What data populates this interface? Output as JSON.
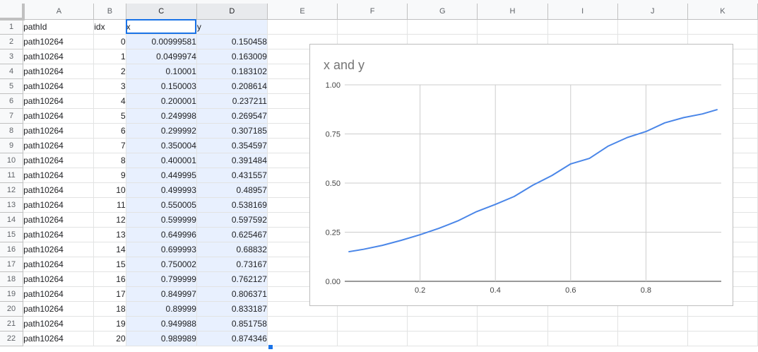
{
  "columns": [
    "A",
    "B",
    "C",
    "D",
    "E",
    "F",
    "G",
    "H",
    "I",
    "J",
    "K"
  ],
  "column_widths": null,
  "headers": {
    "A": "pathId",
    "B": "idx",
    "C": "x",
    "D": "y"
  },
  "rows": [
    {
      "n": "2",
      "pathId": "path10264",
      "idx": "0",
      "x": "0.00999581",
      "y": "0.150458"
    },
    {
      "n": "3",
      "pathId": "path10264",
      "idx": "1",
      "x": "0.0499974",
      "y": "0.163009"
    },
    {
      "n": "4",
      "pathId": "path10264",
      "idx": "2",
      "x": "0.10001",
      "y": "0.183102"
    },
    {
      "n": "5",
      "pathId": "path10264",
      "idx": "3",
      "x": "0.150003",
      "y": "0.208614"
    },
    {
      "n": "6",
      "pathId": "path10264",
      "idx": "4",
      "x": "0.200001",
      "y": "0.237211"
    },
    {
      "n": "7",
      "pathId": "path10264",
      "idx": "5",
      "x": "0.249998",
      "y": "0.269547"
    },
    {
      "n": "8",
      "pathId": "path10264",
      "idx": "6",
      "x": "0.299992",
      "y": "0.307185"
    },
    {
      "n": "9",
      "pathId": "path10264",
      "idx": "7",
      "x": "0.350004",
      "y": "0.354597"
    },
    {
      "n": "10",
      "pathId": "path10264",
      "idx": "8",
      "x": "0.400001",
      "y": "0.391484"
    },
    {
      "n": "11",
      "pathId": "path10264",
      "idx": "9",
      "x": "0.449995",
      "y": "0.431557"
    },
    {
      "n": "12",
      "pathId": "path10264",
      "idx": "10",
      "x": "0.499993",
      "y": "0.48957"
    },
    {
      "n": "13",
      "pathId": "path10264",
      "idx": "11",
      "x": "0.550005",
      "y": "0.538169"
    },
    {
      "n": "14",
      "pathId": "path10264",
      "idx": "12",
      "x": "0.599999",
      "y": "0.597592"
    },
    {
      "n": "15",
      "pathId": "path10264",
      "idx": "13",
      "x": "0.649996",
      "y": "0.625467"
    },
    {
      "n": "16",
      "pathId": "path10264",
      "idx": "14",
      "x": "0.699993",
      "y": "0.68832"
    },
    {
      "n": "17",
      "pathId": "path10264",
      "idx": "15",
      "x": "0.750002",
      "y": "0.73167"
    },
    {
      "n": "18",
      "pathId": "path10264",
      "idx": "16",
      "x": "0.799999",
      "y": "0.762127"
    },
    {
      "n": "19",
      "pathId": "path10264",
      "idx": "17",
      "x": "0.849997",
      "y": "0.806371"
    },
    {
      "n": "20",
      "pathId": "path10264",
      "idx": "18",
      "x": "0.89999",
      "y": "0.833187"
    },
    {
      "n": "21",
      "pathId": "path10264",
      "idx": "19",
      "x": "0.949988",
      "y": "0.851758"
    },
    {
      "n": "22",
      "pathId": "path10264",
      "idx": "20",
      "x": "0.989989",
      "y": "0.874346"
    }
  ],
  "selection_color": "#e8f0fe",
  "accent_color": "#1a73e8",
  "chart_data": {
    "type": "line",
    "title": "x and y",
    "xlabel": "",
    "ylabel": "",
    "xlim": [
      0,
      1
    ],
    "ylim": [
      0,
      1
    ],
    "xticks": [
      "0.2",
      "0.4",
      "0.6",
      "0.8"
    ],
    "yticks": [
      "0.00",
      "0.25",
      "0.50",
      "0.75",
      "1.00"
    ],
    "grid": true,
    "line_color": "#4a86e8",
    "series": [
      {
        "x": [
          0.00999581,
          0.0499974,
          0.10001,
          0.150003,
          0.200001,
          0.249998,
          0.299992,
          0.350004,
          0.400001,
          0.449995,
          0.499993,
          0.550005,
          0.599999,
          0.649996,
          0.699993,
          0.750002,
          0.799999,
          0.849997,
          0.89999,
          0.949988,
          0.989989
        ],
        "values": [
          0.150458,
          0.163009,
          0.183102,
          0.208614,
          0.237211,
          0.269547,
          0.307185,
          0.354597,
          0.391484,
          0.431557,
          0.48957,
          0.538169,
          0.597592,
          0.625467,
          0.68832,
          0.73167,
          0.762127,
          0.806371,
          0.833187,
          0.851758,
          0.874346
        ]
      }
    ]
  }
}
